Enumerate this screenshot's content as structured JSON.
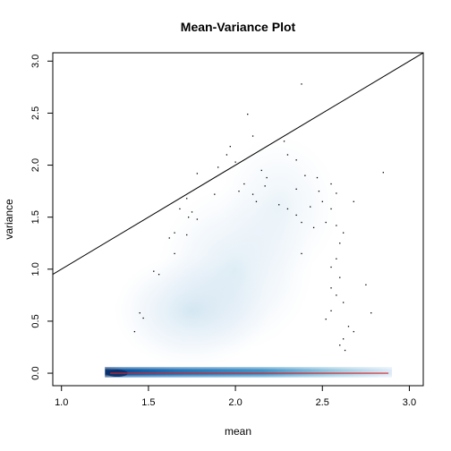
{
  "chart_data": {
    "type": "scatter",
    "title": "Mean-Variance Plot",
    "xlabel": "mean",
    "ylabel": "variance",
    "xlim": [
      0.95,
      3.08
    ],
    "ylim": [
      -0.12,
      3.08
    ],
    "x_ticks": [
      "1.0",
      "1.5",
      "2.0",
      "2.5",
      "3.0"
    ],
    "y_ticks": [
      "0.0",
      "0.5",
      "1.0",
      "1.5",
      "2.0",
      "2.5",
      "3.0"
    ],
    "x_tick_values": [
      1.0,
      1.5,
      2.0,
      2.5,
      3.0
    ],
    "y_tick_values": [
      0.0,
      0.5,
      1.0,
      1.5,
      2.0,
      2.5,
      3.0
    ],
    "reference_line": {
      "label": "identity line y = x",
      "color": "#000000",
      "from": [
        0.95,
        0.95
      ],
      "to": [
        3.08,
        3.08
      ]
    },
    "trend_line": {
      "label": "smoothed fit",
      "color": "#d62728",
      "from": [
        1.28,
        0.0
      ],
      "to": [
        2.88,
        0.0
      ]
    },
    "density": {
      "colormap": "blues",
      "core_band": {
        "x": [
          1.25,
          2.9
        ],
        "y": [
          -0.04,
          0.06
        ],
        "peak_x": 1.32
      },
      "cloud_regions": [
        {
          "x": 1.75,
          "y": 0.6,
          "spread_x": 0.45,
          "spread_y": 0.55,
          "weight": 0.2
        },
        {
          "x": 2.0,
          "y": 1.0,
          "spread_x": 0.45,
          "spread_y": 0.8,
          "weight": 0.15
        },
        {
          "x": 2.25,
          "y": 1.6,
          "spread_x": 0.35,
          "spread_y": 0.7,
          "weight": 0.1
        }
      ]
    },
    "outlier_points": [
      {
        "x": 2.38,
        "y": 2.78
      },
      {
        "x": 2.07,
        "y": 2.49
      },
      {
        "x": 2.1,
        "y": 2.28
      },
      {
        "x": 2.28,
        "y": 2.23
      },
      {
        "x": 1.97,
        "y": 2.18
      },
      {
        "x": 1.95,
        "y": 2.1
      },
      {
        "x": 2.3,
        "y": 2.1
      },
      {
        "x": 2.0,
        "y": 2.03
      },
      {
        "x": 2.35,
        "y": 2.05
      },
      {
        "x": 1.9,
        "y": 1.98
      },
      {
        "x": 2.15,
        "y": 1.95
      },
      {
        "x": 2.85,
        "y": 1.93
      },
      {
        "x": 1.78,
        "y": 1.92
      },
      {
        "x": 2.18,
        "y": 1.88
      },
      {
        "x": 2.4,
        "y": 1.9
      },
      {
        "x": 2.47,
        "y": 1.88
      },
      {
        "x": 2.05,
        "y": 1.82
      },
      {
        "x": 2.17,
        "y": 1.8
      },
      {
        "x": 2.55,
        "y": 1.82
      },
      {
        "x": 2.35,
        "y": 1.77
      },
      {
        "x": 2.02,
        "y": 1.75
      },
      {
        "x": 2.1,
        "y": 1.72
      },
      {
        "x": 1.72,
        "y": 1.68
      },
      {
        "x": 1.88,
        "y": 1.72
      },
      {
        "x": 2.48,
        "y": 1.75
      },
      {
        "x": 2.58,
        "y": 1.73
      },
      {
        "x": 2.68,
        "y": 1.65
      },
      {
        "x": 2.12,
        "y": 1.65
      },
      {
        "x": 2.25,
        "y": 1.62
      },
      {
        "x": 2.3,
        "y": 1.58
      },
      {
        "x": 2.43,
        "y": 1.6
      },
      {
        "x": 2.5,
        "y": 1.65
      },
      {
        "x": 1.68,
        "y": 1.58
      },
      {
        "x": 1.75,
        "y": 1.55
      },
      {
        "x": 2.55,
        "y": 1.58
      },
      {
        "x": 2.35,
        "y": 1.52
      },
      {
        "x": 1.73,
        "y": 1.5
      },
      {
        "x": 1.78,
        "y": 1.48
      },
      {
        "x": 2.38,
        "y": 1.45
      },
      {
        "x": 2.45,
        "y": 1.4
      },
      {
        "x": 2.52,
        "y": 1.45
      },
      {
        "x": 2.58,
        "y": 1.42
      },
      {
        "x": 1.65,
        "y": 1.35
      },
      {
        "x": 1.72,
        "y": 1.33
      },
      {
        "x": 1.62,
        "y": 1.3
      },
      {
        "x": 2.62,
        "y": 1.35
      },
      {
        "x": 2.6,
        "y": 1.25
      },
      {
        "x": 1.65,
        "y": 1.15
      },
      {
        "x": 2.38,
        "y": 1.15
      },
      {
        "x": 2.58,
        "y": 1.1
      },
      {
        "x": 2.55,
        "y": 1.02
      },
      {
        "x": 1.53,
        "y": 0.98
      },
      {
        "x": 1.56,
        "y": 0.95
      },
      {
        "x": 2.6,
        "y": 0.92
      },
      {
        "x": 2.75,
        "y": 0.85
      },
      {
        "x": 2.55,
        "y": 0.82
      },
      {
        "x": 2.58,
        "y": 0.75
      },
      {
        "x": 2.62,
        "y": 0.68
      },
      {
        "x": 2.55,
        "y": 0.6
      },
      {
        "x": 1.45,
        "y": 0.58
      },
      {
        "x": 2.78,
        "y": 0.58
      },
      {
        "x": 1.47,
        "y": 0.53
      },
      {
        "x": 2.52,
        "y": 0.52
      },
      {
        "x": 2.65,
        "y": 0.45
      },
      {
        "x": 2.68,
        "y": 0.4
      },
      {
        "x": 1.42,
        "y": 0.4
      },
      {
        "x": 2.62,
        "y": 0.33
      },
      {
        "x": 2.6,
        "y": 0.27
      },
      {
        "x": 2.63,
        "y": 0.22
      }
    ]
  }
}
